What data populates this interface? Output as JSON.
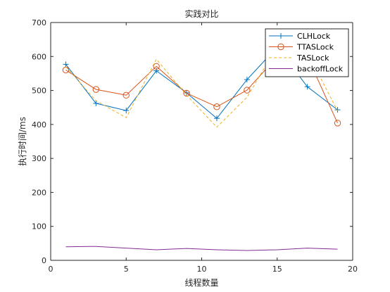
{
  "chart_data": {
    "type": "line",
    "title": "实践对比",
    "xlabel": "线程数量",
    "ylabel": "执行时间/ms",
    "xlim": [
      0,
      20
    ],
    "ylim": [
      0,
      700
    ],
    "xticks": [
      "0",
      "5",
      "10",
      "15",
      "20"
    ],
    "yticks": [
      "0",
      "100",
      "200",
      "300",
      "400",
      "500",
      "600",
      "700"
    ],
    "grid": false,
    "legend_position": "top-right",
    "x": [
      1,
      3,
      5,
      7,
      9,
      11,
      13,
      15,
      17,
      19
    ],
    "series": [
      {
        "name": "CLHLock",
        "color": "#0072BD",
        "marker": "plus",
        "line_style": "solid",
        "values": [
          577,
          462,
          441,
          558,
          493,
          418,
          532,
          628,
          511,
          443
        ]
      },
      {
        "name": "TTASLock",
        "color": "#D95319",
        "marker": "circle",
        "line_style": "solid",
        "values": [
          560,
          503,
          486,
          571,
          492,
          452,
          501,
          600,
          600,
          404
        ]
      },
      {
        "name": "TASLock",
        "color": "#EDB120",
        "marker": "none",
        "line_style": "dashed",
        "values": [
          570,
          470,
          420,
          592,
          486,
          392,
          480,
          630,
          612,
          440
        ]
      },
      {
        "name": "backoffLock",
        "color": "#7E2F8E",
        "marker": "none",
        "line_style": "solid",
        "values": [
          40,
          41,
          36,
          31,
          35,
          31,
          29,
          31,
          36,
          33
        ]
      }
    ]
  }
}
